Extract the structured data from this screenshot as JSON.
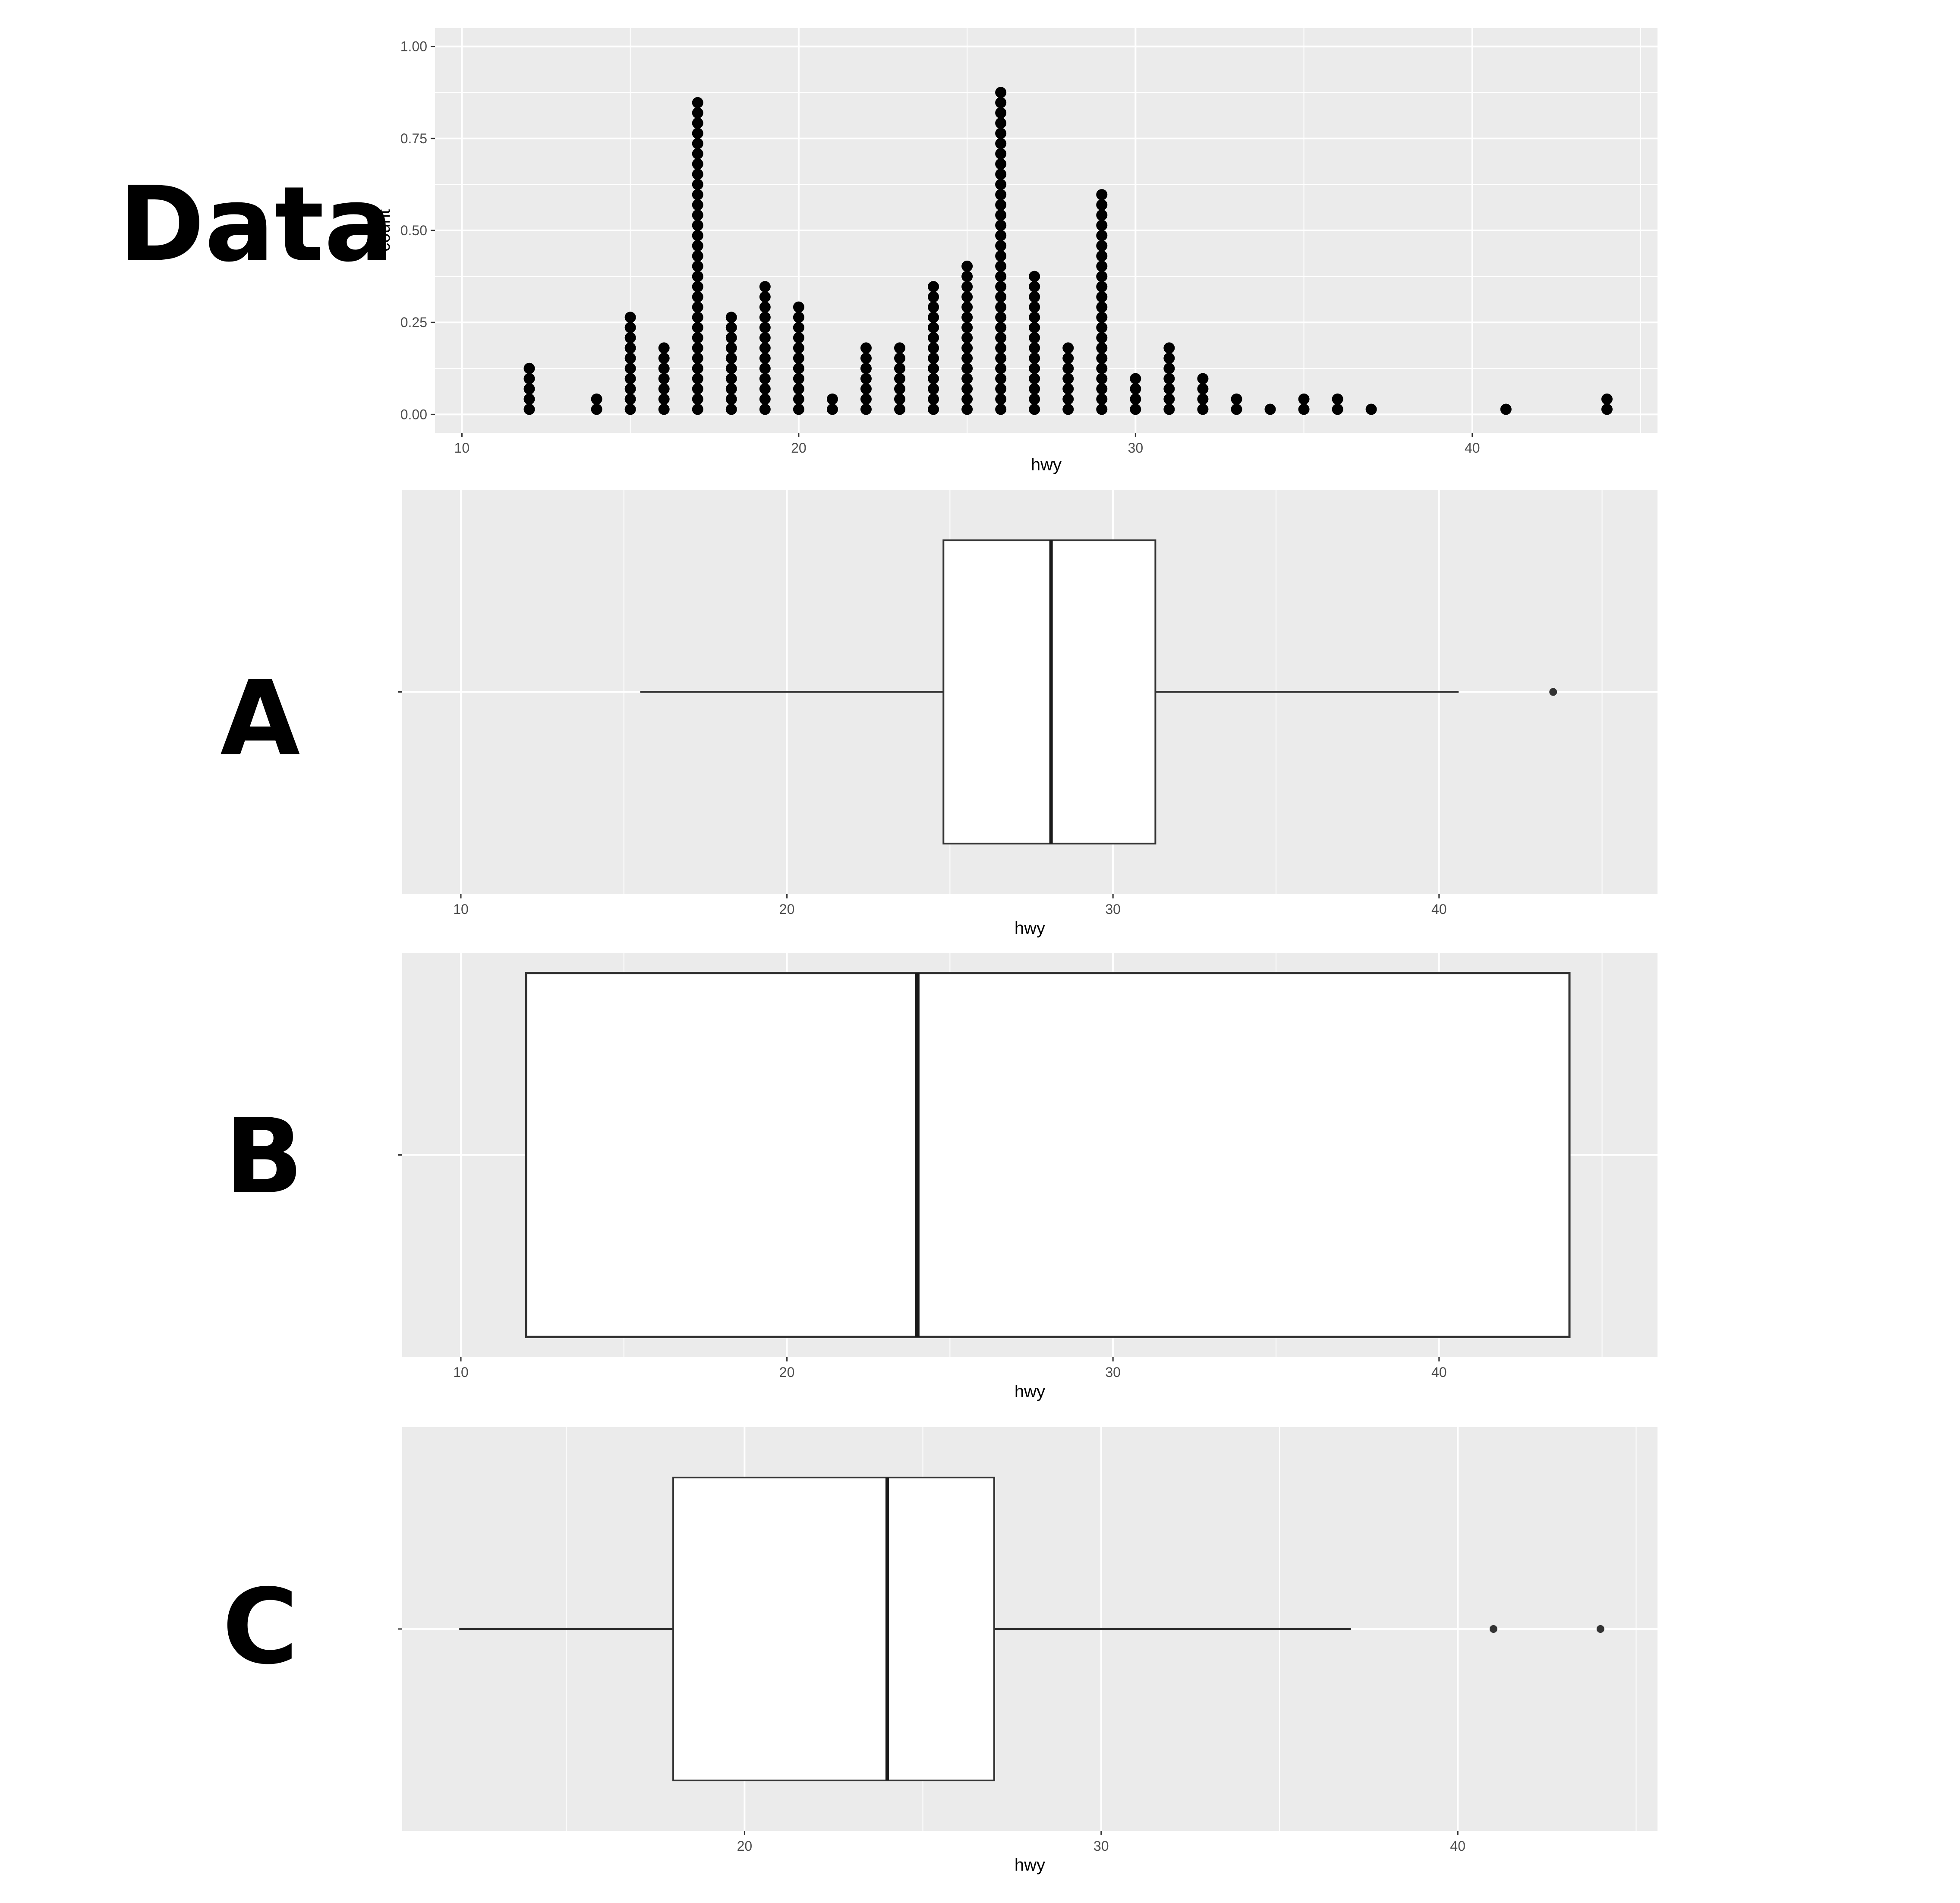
{
  "chart_data": [
    {
      "type": "scatter",
      "panel_label": "Data",
      "subtype": "dotplot",
      "xlabel": "hwy",
      "ylabel": "count",
      "xlim": [
        9.2,
        45.5
      ],
      "ylim": [
        -0.05,
        1.05
      ],
      "xticks": [
        10,
        20,
        30,
        40
      ],
      "xtick_labels": [
        "10",
        "20",
        "30",
        "40"
      ],
      "yticks": [
        0,
        0.25,
        0.5,
        0.75,
        1.0
      ],
      "ytick_labels": [
        "0.00",
        "0.25",
        "0.50",
        "0.75",
        "1.00"
      ],
      "grid": true,
      "dot_counts": [
        {
          "x": 12,
          "count": 5
        },
        {
          "x": 14,
          "count": 2
        },
        {
          "x": 15,
          "count": 10
        },
        {
          "x": 16,
          "count": 7
        },
        {
          "x": 17,
          "count": 31
        },
        {
          "x": 18,
          "count": 10
        },
        {
          "x": 19,
          "count": 13
        },
        {
          "x": 20,
          "count": 11
        },
        {
          "x": 21,
          "count": 2
        },
        {
          "x": 22,
          "count": 7
        },
        {
          "x": 23,
          "count": 7
        },
        {
          "x": 24,
          "count": 13
        },
        {
          "x": 25,
          "count": 15
        },
        {
          "x": 26,
          "count": 32
        },
        {
          "x": 27,
          "count": 14
        },
        {
          "x": 28,
          "count": 7
        },
        {
          "x": 29,
          "count": 22
        },
        {
          "x": 30,
          "count": 4
        },
        {
          "x": 31,
          "count": 7
        },
        {
          "x": 32,
          "count": 4
        },
        {
          "x": 33,
          "count": 2
        },
        {
          "x": 34,
          "count": 1
        },
        {
          "x": 35,
          "count": 2
        },
        {
          "x": 36,
          "count": 2
        },
        {
          "x": 37,
          "count": 1
        },
        {
          "x": 41,
          "count": 1
        },
        {
          "x": 44,
          "count": 2
        }
      ]
    },
    {
      "type": "boxplot",
      "panel_label": "A",
      "xlabel": "hwy",
      "xlim": [
        8.2,
        46.7
      ],
      "xticks": [
        10,
        20,
        30,
        40
      ],
      "xtick_labels": [
        "10",
        "20",
        "30",
        "40"
      ],
      "grid": true,
      "whisker_low": 15.5,
      "q1": 24.8,
      "median": 28.1,
      "q3": 31.3,
      "whisker_high": 40.6,
      "outliers": [
        43.5
      ]
    },
    {
      "type": "boxplot",
      "panel_label": "B",
      "xlabel": "hwy",
      "xlim": [
        8.2,
        46.7
      ],
      "xticks": [
        10,
        20,
        30,
        40
      ],
      "xtick_labels": [
        "10",
        "20",
        "30",
        "40"
      ],
      "grid": true,
      "q1": 12,
      "median": 24,
      "q3": 44,
      "outliers": []
    },
    {
      "type": "boxplot",
      "panel_label": "C",
      "xlabel": "hwy",
      "xlim": [
        10.4,
        45.6
      ],
      "xticks": [
        20,
        30,
        40
      ],
      "xtick_labels": [
        "20",
        "30",
        "40"
      ],
      "grid": true,
      "whisker_low": 12,
      "q1": 18,
      "median": 24,
      "q3": 27,
      "whisker_high": 37,
      "outliers": [
        41,
        44
      ]
    }
  ]
}
